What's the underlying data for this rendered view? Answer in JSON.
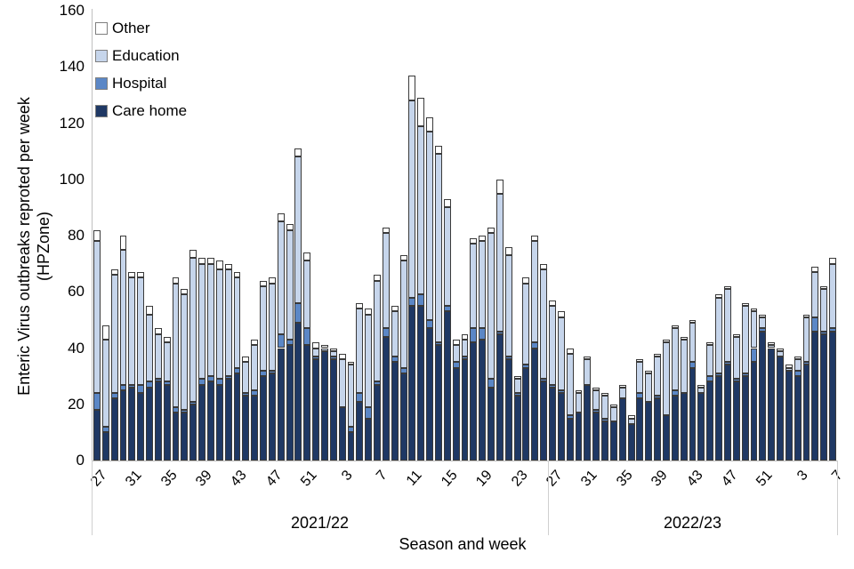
{
  "chart_data": {
    "type": "bar",
    "stacked": true,
    "ylabel_line1": "Enteric Virus outbreaks reproted per week",
    "ylabel_line2": "(HPZone)",
    "xlabel": "Season and week",
    "ylim": [
      0,
      160
    ],
    "yticks": [
      0,
      20,
      40,
      60,
      80,
      100,
      120,
      140,
      160
    ],
    "grid": false,
    "legend_position": "top-left-inside",
    "tick_every": 4,
    "weeks": [
      27,
      28,
      29,
      30,
      31,
      32,
      33,
      34,
      35,
      36,
      37,
      38,
      39,
      40,
      41,
      42,
      43,
      44,
      45,
      46,
      47,
      48,
      49,
      50,
      51,
      52,
      1,
      2,
      3,
      4,
      5,
      6,
      7,
      8,
      9,
      10,
      11,
      12,
      13,
      14,
      15,
      16,
      17,
      18,
      19,
      20,
      21,
      22,
      23,
      24,
      25,
      26,
      27,
      28,
      29,
      30,
      31,
      32,
      33,
      34,
      35,
      36,
      37,
      38,
      39,
      40,
      41,
      42,
      43,
      44,
      45,
      46,
      47,
      48,
      49,
      50,
      51,
      52,
      1,
      2,
      3,
      4,
      5,
      6,
      7
    ],
    "seasons": [
      {
        "label": "2021/22",
        "from": 0,
        "to": 51
      },
      {
        "label": "2022/23",
        "from": 52,
        "to": 84
      }
    ],
    "series": [
      {
        "name": "Care home",
        "color": "#1f3864",
        "values": [
          18,
          10,
          22,
          25,
          26,
          24,
          26,
          28,
          27,
          17,
          17,
          20,
          27,
          28,
          27,
          29,
          31,
          23,
          23,
          30,
          31,
          40,
          41,
          49,
          41,
          36,
          39,
          36,
          19,
          10,
          21,
          15,
          27,
          44,
          35,
          31,
          55,
          55,
          47,
          41,
          53,
          33,
          36,
          42,
          43,
          26,
          45,
          36,
          23,
          33,
          40,
          28,
          26,
          24,
          15,
          17,
          27,
          17,
          14,
          14,
          22,
          13,
          22,
          21,
          22,
          16,
          23,
          24,
          33,
          24,
          28,
          30,
          34,
          28,
          30,
          35,
          46,
          40,
          37,
          32,
          30,
          34,
          46,
          45,
          46
        ]
      },
      {
        "name": "Hospital",
        "color": "#5b87c6",
        "values": [
          6,
          2,
          2,
          2,
          1,
          3,
          2,
          1,
          1,
          2,
          1,
          1,
          2,
          2,
          2,
          1,
          2,
          1,
          2,
          2,
          1,
          5,
          2,
          7,
          6,
          1,
          0,
          1,
          0,
          2,
          3,
          4,
          1,
          3,
          2,
          2,
          3,
          4,
          3,
          1,
          2,
          2,
          1,
          5,
          4,
          3,
          1,
          1,
          1,
          1,
          2,
          1,
          1,
          1,
          1,
          0,
          0,
          1,
          1,
          0,
          0,
          0,
          2,
          0,
          1,
          0,
          2,
          0,
          2,
          0,
          2,
          1,
          1,
          1,
          1,
          5,
          1,
          0,
          0,
          0,
          2,
          1,
          5,
          1,
          1
        ]
      },
      {
        "name": "Education",
        "color": "#c6d5eb",
        "values": [
          54,
          31,
          42,
          48,
          38,
          38,
          24,
          16,
          14,
          44,
          41,
          51,
          41,
          40,
          39,
          38,
          32,
          11,
          16,
          30,
          31,
          40,
          39,
          52,
          24,
          3,
          1,
          2,
          17,
          22,
          30,
          33,
          36,
          34,
          16,
          38,
          70,
          60,
          67,
          67,
          35,
          6,
          6,
          30,
          31,
          52,
          49,
          36,
          5,
          29,
          36,
          39,
          28,
          26,
          22,
          7,
          9,
          7,
          8,
          5,
          4,
          2,
          11,
          10,
          14,
          26,
          22,
          19,
          14,
          2,
          11,
          27,
          26,
          15,
          24,
          13,
          4,
          1,
          2,
          1,
          4,
          16,
          16,
          15,
          23
        ]
      },
      {
        "name": "Other",
        "color": "#ffffff",
        "values": [
          4,
          5,
          2,
          5,
          2,
          2,
          3,
          2,
          2,
          2,
          2,
          3,
          2,
          2,
          3,
          2,
          2,
          2,
          2,
          2,
          2,
          3,
          2,
          3,
          3,
          2,
          1,
          1,
          2,
          1,
          2,
          2,
          2,
          2,
          2,
          2,
          9,
          10,
          5,
          3,
          3,
          2,
          2,
          2,
          2,
          2,
          5,
          3,
          1,
          2,
          2,
          2,
          2,
          2,
          2,
          1,
          1,
          1,
          1,
          1,
          1,
          1,
          1,
          1,
          1,
          1,
          1,
          1,
          1,
          1,
          1,
          1,
          1,
          1,
          1,
          1,
          1,
          1,
          1,
          1,
          1,
          1,
          2,
          1,
          2
        ]
      }
    ],
    "legend": [
      {
        "label": "Other",
        "color": "#ffffff"
      },
      {
        "label": "Education",
        "color": "#c6d5eb"
      },
      {
        "label": "Hospital",
        "color": "#5b87c6"
      },
      {
        "label": "Care home",
        "color": "#1f3864"
      }
    ]
  }
}
